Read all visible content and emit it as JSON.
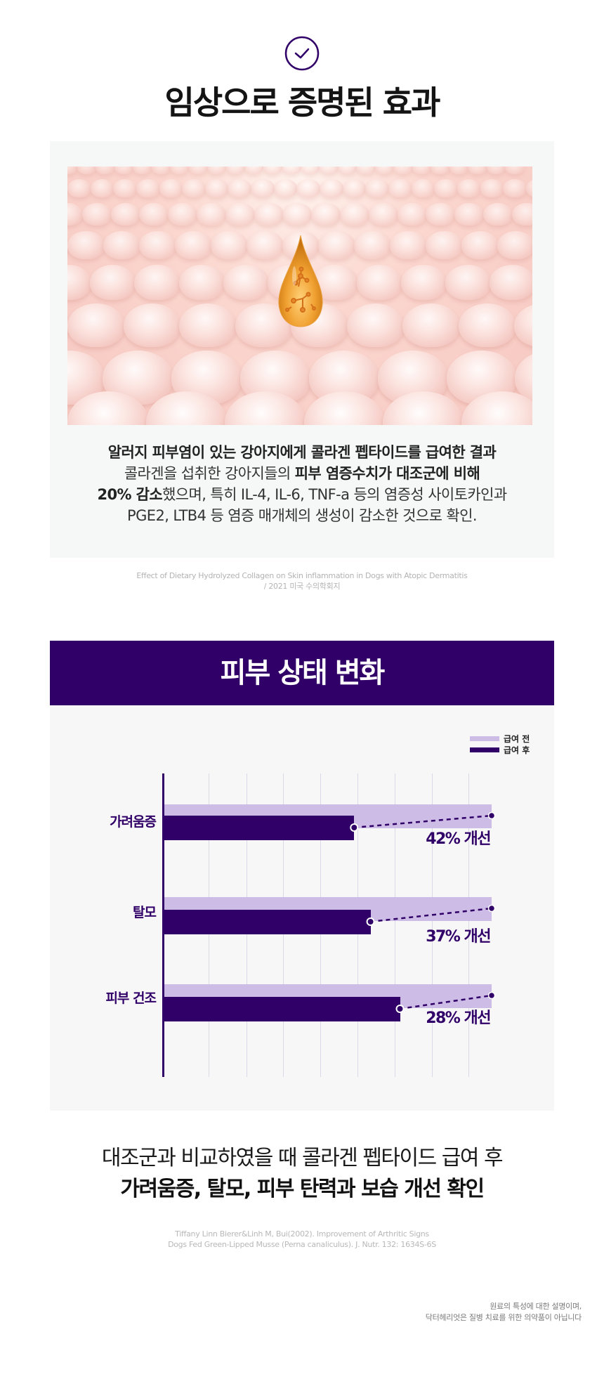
{
  "header": {
    "icon": "check-circle-icon",
    "title": "임상으로 증명된 효과"
  },
  "study": {
    "image_alt": "collagen-drop-on-skin-cells",
    "line1": "알러지 피부염이 있는 강아지에게 콜라겐 펩타이드를 급여한 결과",
    "line2_normal": "콜라겐을 섭취한 강아지들의 ",
    "line2_bold": "피부 염증수치가 대조군에 비해",
    "line3_bold": "20% 감소",
    "line3_normal": "했으며, 특히 IL-4, IL-6, TNF-a 등의 염증성 사이토카인과",
    "line4": "PGE2, LTB4 등 염증 매개체의 생성이 감소한 것으로 확인.",
    "citation_line1": "Effect of Dietary Hydrolyzed Collagen on Skin inflammation in Dogs with Atopic Dermatitis",
    "citation_line2": "/ 2021 미국 수의학회지"
  },
  "colors": {
    "brand_purple": "#300068",
    "before_bar": "#cdbde6",
    "panel_bg": "#f7f7f7"
  },
  "chart_data": {
    "type": "bar",
    "orientation": "horizontal",
    "title": "피부 상태 변화",
    "categories": [
      "가려움증",
      "탈모",
      "피부 건조"
    ],
    "series": [
      {
        "name": "급여 전",
        "color": "#cdbde6",
        "values": [
          100,
          100,
          100
        ]
      },
      {
        "name": "급여 후",
        "color": "#300068",
        "values": [
          58,
          63,
          72
        ]
      }
    ],
    "annotations": [
      "42% 개선",
      "37% 개선",
      "28% 개선"
    ],
    "xlabel": "",
    "ylabel": "",
    "xlim": [
      0,
      100
    ],
    "grid": true,
    "tick_labels_visible": false,
    "legend_position": "top-right"
  },
  "chart": {
    "title": "피부 상태 변화",
    "legend": [
      {
        "label": "급여 전"
      },
      {
        "label": "급여 후"
      }
    ],
    "rows": [
      {
        "label": "가려움증",
        "improvement": "42% 개선"
      },
      {
        "label": "탈모",
        "improvement": "37% 개선"
      },
      {
        "label": "피부 건조",
        "improvement": "28% 개선"
      }
    ]
  },
  "conclusion": {
    "line1": "대조군과 비교하였을 때 콜라겐 펩타이드 급여 후",
    "line2": "가려움증, 탈모, 피부 탄력과 보습 개선 확인",
    "citation_line1": "Tiffany Linn Bierer&Linh M, Bui(2002). Improvement of Arthritic Signs",
    "citation_line2": "Dogs Fed Green-Lipped Musse (Perna canaliculus). J. Nutr. 132: 1634S-6S"
  },
  "disclaimer": {
    "line1": "원료의 특성에 대한 설명이며,",
    "line2": "닥터헤리엇은 질병 치료를 위한 의약품이 아닙니다"
  }
}
